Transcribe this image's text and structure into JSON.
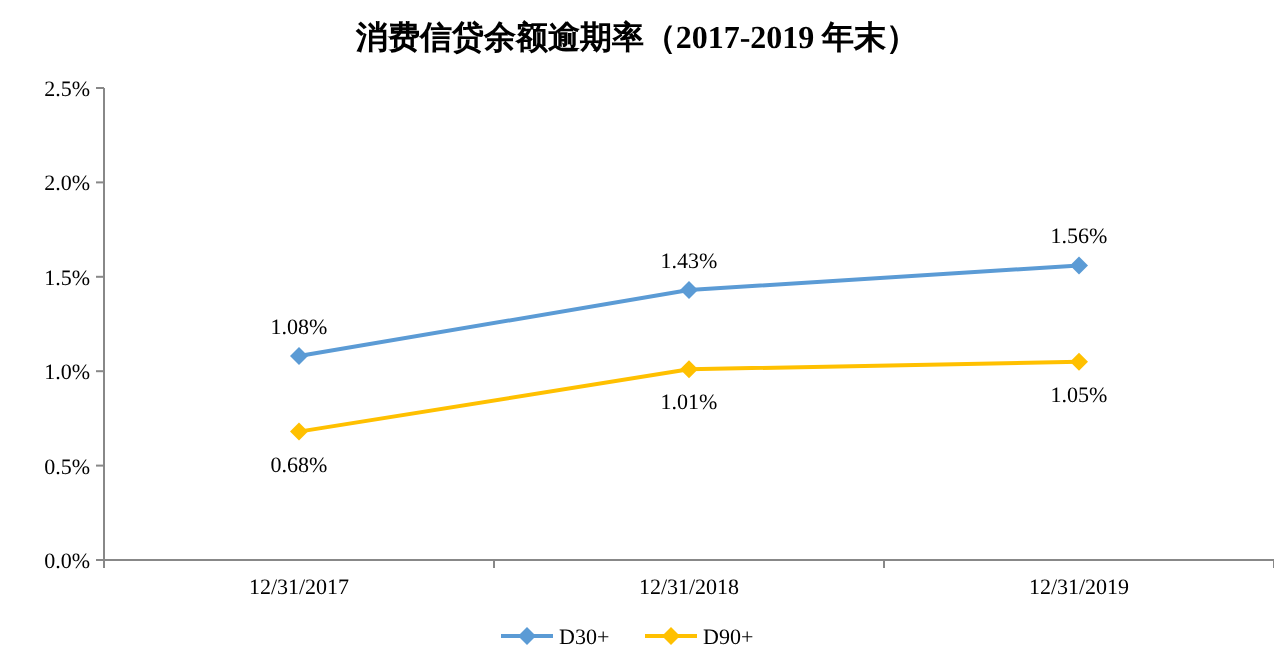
{
  "chart_data": {
    "type": "line",
    "title": "消费信贷余额逾期率（2017-2019 年末）",
    "categories": [
      "12/31/2017",
      "12/31/2018",
      "12/31/2019"
    ],
    "series": [
      {
        "name": "D30+",
        "color": "#5b9bd5",
        "values": [
          1.08,
          1.43,
          1.56
        ],
        "value_labels": [
          "1.08%",
          "1.43%",
          "1.56%"
        ]
      },
      {
        "name": "D90+",
        "color": "#ffc000",
        "values": [
          0.68,
          1.01,
          1.05
        ],
        "value_labels": [
          "0.68%",
          "1.01%",
          "1.05%"
        ]
      }
    ],
    "ylim": [
      0,
      2.5
    ],
    "yticks": [
      {
        "value": 0,
        "label": "0.0%"
      },
      {
        "value": 0.5,
        "label": "0.5%"
      },
      {
        "value": 1,
        "label": "1.0%"
      },
      {
        "value": 1.5,
        "label": "1.5%"
      },
      {
        "value": 2,
        "label": "2.0%"
      },
      {
        "value": 2.5,
        "label": "2.5%"
      }
    ],
    "grid": false,
    "legend": "bottom",
    "marker": "diamond",
    "line_style": "solid"
  }
}
